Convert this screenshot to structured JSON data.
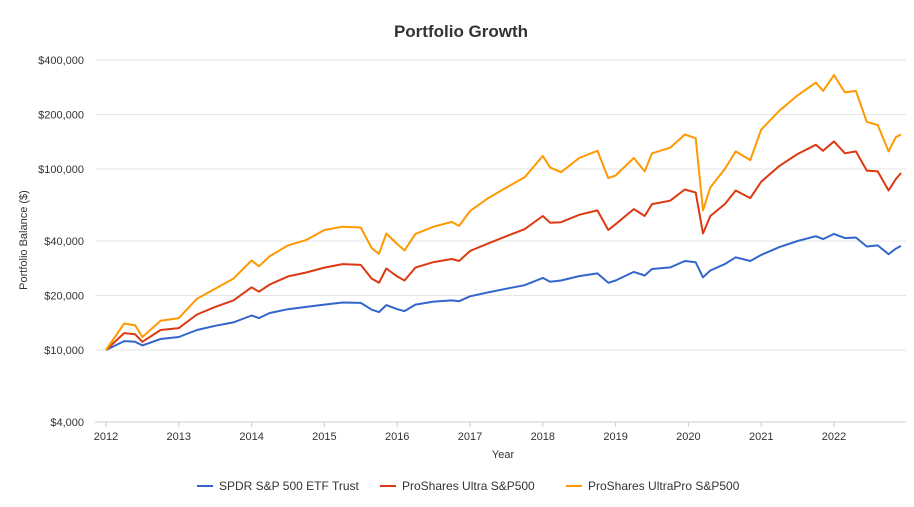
{
  "chart_data": {
    "type": "line",
    "title": "Portfolio Growth",
    "xlabel": "Year",
    "ylabel": "Portfolio Balance ($)",
    "yscale": "log",
    "ylim": [
      4000,
      400000
    ],
    "xlim": [
      2012.0,
      2022.92
    ],
    "x_ticks": [
      2012,
      2013,
      2014,
      2015,
      2016,
      2017,
      2018,
      2019,
      2020,
      2021,
      2022
    ],
    "x_tick_labels": [
      "2012",
      "2013",
      "2014",
      "2015",
      "2016",
      "2017",
      "2018",
      "2019",
      "2020",
      "2021",
      "2022"
    ],
    "y_ticks": [
      4000,
      10000,
      20000,
      40000,
      100000,
      200000,
      400000
    ],
    "y_tick_labels": [
      "$4,000",
      "$10,000",
      "$20,000",
      "$40,000",
      "$100,000",
      "$200,000",
      "$400,000"
    ],
    "grid": true,
    "legend_position": "bottom",
    "series": [
      {
        "name": "SPDR S&P 500 ETF Trust",
        "color": "#3366cc",
        "points": [
          [
            2012.0,
            10000
          ],
          [
            2012.25,
            11200
          ],
          [
            2012.4,
            11100
          ],
          [
            2012.5,
            10600
          ],
          [
            2012.75,
            11500
          ],
          [
            2013.0,
            11800
          ],
          [
            2013.25,
            12900
          ],
          [
            2013.5,
            13600
          ],
          [
            2013.75,
            14200
          ],
          [
            2014.0,
            15500
          ],
          [
            2014.1,
            15000
          ],
          [
            2014.25,
            16000
          ],
          [
            2014.5,
            16800
          ],
          [
            2014.75,
            17300
          ],
          [
            2015.0,
            17800
          ],
          [
            2015.25,
            18300
          ],
          [
            2015.5,
            18200
          ],
          [
            2015.65,
            16700
          ],
          [
            2015.75,
            16200
          ],
          [
            2015.85,
            17700
          ],
          [
            2016.0,
            16800
          ],
          [
            2016.1,
            16400
          ],
          [
            2016.25,
            17800
          ],
          [
            2016.5,
            18500
          ],
          [
            2016.75,
            18800
          ],
          [
            2016.85,
            18600
          ],
          [
            2017.0,
            19800
          ],
          [
            2017.25,
            20800
          ],
          [
            2017.5,
            21800
          ],
          [
            2017.75,
            22800
          ],
          [
            2018.0,
            25000
          ],
          [
            2018.1,
            23800
          ],
          [
            2018.25,
            24200
          ],
          [
            2018.5,
            25600
          ],
          [
            2018.75,
            26500
          ],
          [
            2018.9,
            23500
          ],
          [
            2019.0,
            24200
          ],
          [
            2019.25,
            27000
          ],
          [
            2019.4,
            25800
          ],
          [
            2019.5,
            28000
          ],
          [
            2019.75,
            28600
          ],
          [
            2019.95,
            31000
          ],
          [
            2020.1,
            30500
          ],
          [
            2020.2,
            25200
          ],
          [
            2020.3,
            27500
          ],
          [
            2020.5,
            29800
          ],
          [
            2020.65,
            32500
          ],
          [
            2020.85,
            31000
          ],
          [
            2021.0,
            33500
          ],
          [
            2021.25,
            37000
          ],
          [
            2021.5,
            40000
          ],
          [
            2021.75,
            42500
          ],
          [
            2021.85,
            41000
          ],
          [
            2022.0,
            43800
          ],
          [
            2022.15,
            41500
          ],
          [
            2022.3,
            41800
          ],
          [
            2022.45,
            37300
          ],
          [
            2022.6,
            37800
          ],
          [
            2022.75,
            33800
          ],
          [
            2022.85,
            36300
          ],
          [
            2022.92,
            37600
          ]
        ]
      },
      {
        "name": "ProShares Ultra S&P500",
        "color": "#dc3912",
        "points": [
          [
            2012.0,
            10000
          ],
          [
            2012.25,
            12400
          ],
          [
            2012.4,
            12200
          ],
          [
            2012.5,
            11100
          ],
          [
            2012.75,
            12900
          ],
          [
            2013.0,
            13200
          ],
          [
            2013.25,
            15700
          ],
          [
            2013.5,
            17300
          ],
          [
            2013.75,
            18800
          ],
          [
            2014.0,
            22200
          ],
          [
            2014.1,
            21000
          ],
          [
            2014.25,
            23000
          ],
          [
            2014.5,
            25500
          ],
          [
            2014.75,
            26800
          ],
          [
            2015.0,
            28500
          ],
          [
            2015.25,
            29800
          ],
          [
            2015.5,
            29500
          ],
          [
            2015.65,
            24800
          ],
          [
            2015.75,
            23500
          ],
          [
            2015.85,
            28200
          ],
          [
            2016.0,
            25500
          ],
          [
            2016.1,
            24200
          ],
          [
            2016.25,
            28500
          ],
          [
            2016.5,
            30600
          ],
          [
            2016.75,
            31800
          ],
          [
            2016.85,
            31000
          ],
          [
            2017.0,
            35200
          ],
          [
            2017.25,
            38800
          ],
          [
            2017.5,
            42500
          ],
          [
            2017.75,
            46500
          ],
          [
            2018.0,
            55000
          ],
          [
            2018.1,
            50500
          ],
          [
            2018.25,
            50800
          ],
          [
            2018.5,
            55800
          ],
          [
            2018.75,
            59000
          ],
          [
            2018.9,
            46000
          ],
          [
            2019.0,
            49500
          ],
          [
            2019.25,
            60000
          ],
          [
            2019.4,
            55000
          ],
          [
            2019.5,
            64000
          ],
          [
            2019.75,
            66800
          ],
          [
            2019.95,
            77000
          ],
          [
            2020.1,
            74000
          ],
          [
            2020.2,
            44000
          ],
          [
            2020.3,
            55000
          ],
          [
            2020.5,
            64000
          ],
          [
            2020.65,
            76000
          ],
          [
            2020.85,
            69000
          ],
          [
            2021.0,
            85000
          ],
          [
            2021.25,
            104000
          ],
          [
            2021.5,
            121000
          ],
          [
            2021.75,
            136000
          ],
          [
            2021.85,
            126000
          ],
          [
            2022.0,
            142000
          ],
          [
            2022.15,
            122000
          ],
          [
            2022.3,
            125000
          ],
          [
            2022.45,
            98000
          ],
          [
            2022.6,
            97000
          ],
          [
            2022.75,
            76000
          ],
          [
            2022.85,
            88000
          ],
          [
            2022.92,
            95000
          ]
        ]
      },
      {
        "name": "ProShares UltraPro S&P500",
        "color": "#ff9900",
        "points": [
          [
            2012.0,
            10000
          ],
          [
            2012.25,
            14000
          ],
          [
            2012.4,
            13700
          ],
          [
            2012.5,
            11800
          ],
          [
            2012.75,
            14500
          ],
          [
            2013.0,
            15000
          ],
          [
            2013.25,
            19200
          ],
          [
            2013.5,
            21800
          ],
          [
            2013.75,
            24800
          ],
          [
            2014.0,
            31200
          ],
          [
            2014.1,
            29000
          ],
          [
            2014.25,
            33000
          ],
          [
            2014.5,
            37800
          ],
          [
            2014.75,
            40500
          ],
          [
            2015.0,
            46000
          ],
          [
            2015.25,
            48000
          ],
          [
            2015.5,
            47500
          ],
          [
            2015.65,
            36500
          ],
          [
            2015.75,
            34000
          ],
          [
            2015.85,
            44000
          ],
          [
            2016.0,
            38500
          ],
          [
            2016.1,
            35500
          ],
          [
            2016.25,
            43800
          ],
          [
            2016.5,
            48000
          ],
          [
            2016.75,
            51000
          ],
          [
            2016.85,
            48500
          ],
          [
            2017.0,
            58500
          ],
          [
            2017.25,
            69000
          ],
          [
            2017.5,
            79000
          ],
          [
            2017.75,
            90000
          ],
          [
            2018.0,
            118000
          ],
          [
            2018.1,
            102000
          ],
          [
            2018.25,
            96000
          ],
          [
            2018.5,
            115000
          ],
          [
            2018.75,
            126000
          ],
          [
            2018.9,
            89000
          ],
          [
            2019.0,
            92000
          ],
          [
            2019.25,
            115000
          ],
          [
            2019.4,
            97000
          ],
          [
            2019.5,
            122000
          ],
          [
            2019.75,
            131000
          ],
          [
            2019.95,
            155000
          ],
          [
            2020.1,
            148000
          ],
          [
            2020.2,
            59000
          ],
          [
            2020.3,
            79000
          ],
          [
            2020.5,
            100000
          ],
          [
            2020.65,
            125000
          ],
          [
            2020.85,
            112000
          ],
          [
            2021.0,
            165000
          ],
          [
            2021.25,
            210000
          ],
          [
            2021.5,
            255000
          ],
          [
            2021.75,
            300000
          ],
          [
            2021.85,
            270000
          ],
          [
            2022.0,
            330000
          ],
          [
            2022.15,
            265000
          ],
          [
            2022.3,
            270000
          ],
          [
            2022.45,
            182000
          ],
          [
            2022.6,
            175000
          ],
          [
            2022.75,
            125000
          ],
          [
            2022.85,
            150000
          ],
          [
            2022.92,
            155000
          ]
        ]
      }
    ]
  }
}
